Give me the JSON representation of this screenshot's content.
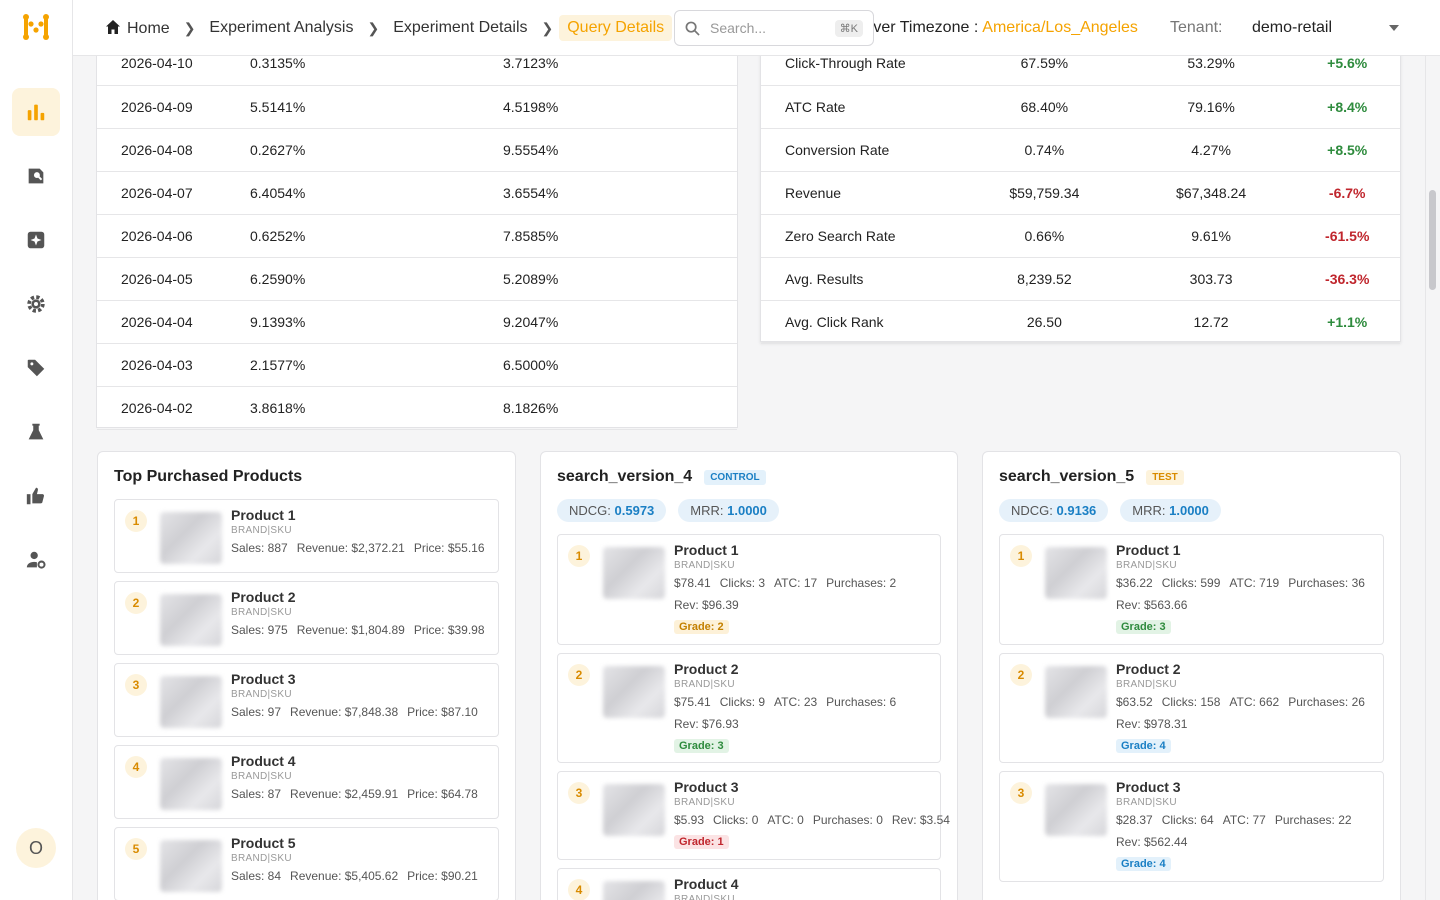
{
  "app": {
    "logo": "app-logo"
  },
  "sidebar": {
    "items": [
      {
        "icon": "bar-chart-icon",
        "active": true
      },
      {
        "icon": "search-analytics-icon"
      },
      {
        "icon": "sparkle-icon"
      },
      {
        "icon": "gear-icon"
      },
      {
        "icon": "tag-icon"
      },
      {
        "icon": "flask-icon"
      },
      {
        "icon": "thumbs-up-icon"
      },
      {
        "icon": "user-settings-icon"
      }
    ],
    "avatar": "O"
  },
  "header": {
    "breadcrumb": [
      "Home",
      "Experiment Analysis",
      "Experiment Details",
      "Query Details"
    ],
    "search": {
      "placeholder": "Search...",
      "shortcut": "⌘K"
    },
    "timezone_label": "rver Timezone :",
    "timezone_value": "America/Los_Angeles",
    "tenant_label": "Tenant:",
    "tenant_value": "demo-retail"
  },
  "daily_table": [
    [
      "2026-04-10",
      "0.3135%",
      "3.7123%"
    ],
    [
      "2026-04-09",
      "5.5141%",
      "4.5198%"
    ],
    [
      "2026-04-08",
      "0.2627%",
      "9.5554%"
    ],
    [
      "2026-04-07",
      "6.4054%",
      "3.6554%"
    ],
    [
      "2026-04-06",
      "0.6252%",
      "7.8585%"
    ],
    [
      "2026-04-05",
      "6.2590%",
      "5.2089%"
    ],
    [
      "2026-04-04",
      "9.1393%",
      "9.2047%"
    ],
    [
      "2026-04-03",
      "2.1577%",
      "6.5000%"
    ],
    [
      "2026-04-02",
      "3.8618%",
      "8.1826%"
    ]
  ],
  "metrics_table": [
    [
      "Click-Through Rate",
      "67.59%",
      "53.29%",
      "+5.6%"
    ],
    [
      "ATC Rate",
      "68.40%",
      "79.16%",
      "+8.4%"
    ],
    [
      "Conversion Rate",
      "0.74%",
      "4.27%",
      "+8.5%"
    ],
    [
      "Revenue",
      "$59,759.34",
      "$67,348.24",
      "-6.7%"
    ],
    [
      "Zero Search Rate",
      "0.66%",
      "9.61%",
      "-61.5%"
    ],
    [
      "Avg. Results",
      "8,239.52",
      "303.73",
      "-36.3%"
    ],
    [
      "Avg. Click Rank",
      "26.50",
      "12.72",
      "+1.1%"
    ]
  ],
  "top_purchased": {
    "title": "Top Purchased Products",
    "items": [
      {
        "rank": "1",
        "name": "Product 1",
        "sub": "BRAND|SKU",
        "stats": [
          "Sales: 887",
          "Revenue: $2,372.21",
          "Price: $55.16"
        ]
      },
      {
        "rank": "2",
        "name": "Product 2",
        "sub": "BRAND|SKU",
        "stats": [
          "Sales: 975",
          "Revenue: $1,804.89",
          "Price: $39.98"
        ]
      },
      {
        "rank": "3",
        "name": "Product 3",
        "sub": "BRAND|SKU",
        "stats": [
          "Sales: 97",
          "Revenue: $7,848.38",
          "Price: $87.10"
        ]
      },
      {
        "rank": "4",
        "name": "Product 4",
        "sub": "BRAND|SKU",
        "stats": [
          "Sales: 87",
          "Revenue: $2,459.91",
          "Price: $64.78"
        ]
      },
      {
        "rank": "5",
        "name": "Product 5",
        "sub": "BRAND|SKU",
        "stats": [
          "Sales: 84",
          "Revenue: $5,405.62",
          "Price: $90.21"
        ]
      }
    ]
  },
  "version_a": {
    "title": "search_version_4",
    "badge": "CONTROL",
    "ndcg_label": "NDCG:",
    "ndcg": "0.5973",
    "mrr_label": "MRR:",
    "mrr": "1.0000",
    "items": [
      {
        "rank": "1",
        "name": "Product 1",
        "sub": "BRAND|SKU",
        "stats": [
          "$78.41",
          "Clicks: 3",
          "ATC: 17",
          "Purchases: 2"
        ],
        "rev": "Rev: $96.39",
        "grade": "Grade: 2",
        "gclass": "g2"
      },
      {
        "rank": "2",
        "name": "Product 2",
        "sub": "BRAND|SKU",
        "stats": [
          "$75.41",
          "Clicks: 9",
          "ATC: 23",
          "Purchases: 6"
        ],
        "rev": "Rev: $76.93",
        "grade": "Grade: 3",
        "gclass": "g3"
      },
      {
        "rank": "3",
        "name": "Product 3",
        "sub": "BRAND|SKU",
        "stats": [
          "$5.93",
          "Clicks: 0",
          "ATC: 0",
          "Purchases: 0",
          "Rev: $3.54"
        ],
        "rev": "",
        "grade": "Grade: 1",
        "gclass": "g1"
      },
      {
        "rank": "4",
        "name": "Product 4",
        "sub": "BRAND|SKU",
        "stats": [],
        "rev": "",
        "grade": "",
        "gclass": ""
      }
    ]
  },
  "version_b": {
    "title": "search_version_5",
    "badge": "TEST",
    "ndcg_label": "NDCG:",
    "ndcg": "0.9136",
    "mrr_label": "MRR:",
    "mrr": "1.0000",
    "items": [
      {
        "rank": "1",
        "name": "Product 1",
        "sub": "BRAND|SKU",
        "stats": [
          "$36.22",
          "Clicks: 599",
          "ATC: 719",
          "Purchases: 36"
        ],
        "rev": "Rev: $563.66",
        "grade": "Grade: 3",
        "gclass": "g3"
      },
      {
        "rank": "2",
        "name": "Product 2",
        "sub": "BRAND|SKU",
        "stats": [
          "$63.52",
          "Clicks: 158",
          "ATC: 662",
          "Purchases: 26"
        ],
        "rev": "Rev: $978.31",
        "grade": "Grade: 4",
        "gclass": "g4"
      },
      {
        "rank": "3",
        "name": "Product 3",
        "sub": "BRAND|SKU",
        "stats": [
          "$28.37",
          "Clicks: 64",
          "ATC: 77",
          "Purchases: 22"
        ],
        "rev": "Rev: $562.44",
        "grade": "Grade: 4",
        "gclass": "g4"
      }
    ]
  },
  "colors": {
    "accent": "#f5a300",
    "positive": "#2e8b3d",
    "negative": "#c0262d",
    "info": "#1a7fc4"
  }
}
